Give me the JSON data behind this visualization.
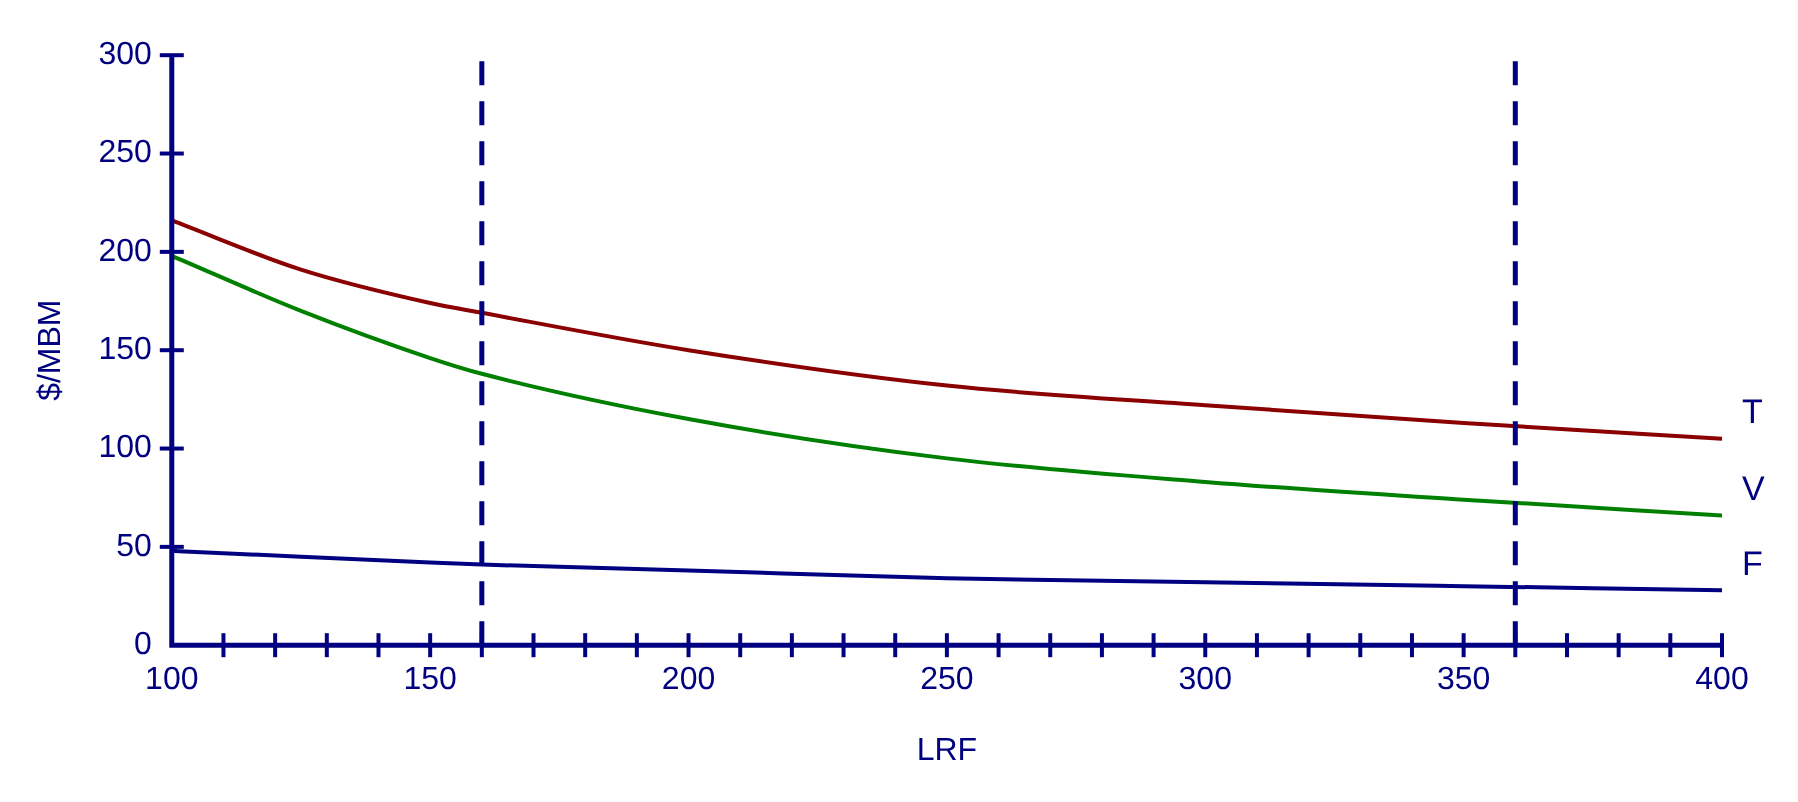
{
  "chart_data": {
    "type": "line",
    "xlabel": "LRF",
    "ylabel": "$/MBM",
    "xlim": [
      100,
      400
    ],
    "ylim": [
      0,
      300
    ],
    "xticks": [
      100,
      {
        "value": 110,
        "label": null
      },
      {
        "value": 120,
        "label": null
      },
      {
        "value": 130,
        "label": null
      },
      {
        "value": 140,
        "label": null
      },
      150,
      {
        "value": 160,
        "label": null
      },
      {
        "value": 170,
        "label": null
      },
      {
        "value": 180,
        "label": null
      },
      {
        "value": 190,
        "label": null
      },
      200,
      {
        "value": 210,
        "label": null
      },
      {
        "value": 220,
        "label": null
      },
      {
        "value": 230,
        "label": null
      },
      {
        "value": 240,
        "label": null
      },
      250,
      {
        "value": 260,
        "label": null
      },
      {
        "value": 270,
        "label": null
      },
      {
        "value": 280,
        "label": null
      },
      {
        "value": 290,
        "label": null
      },
      300,
      {
        "value": 310,
        "label": null
      },
      {
        "value": 320,
        "label": null
      },
      {
        "value": 330,
        "label": null
      },
      {
        "value": 340,
        "label": null
      },
      350,
      {
        "value": 360,
        "label": null
      },
      {
        "value": 370,
        "label": null
      },
      {
        "value": 380,
        "label": null
      },
      {
        "value": 390,
        "label": null
      },
      400
    ],
    "yticks": [
      0,
      50,
      100,
      150,
      200,
      250,
      300
    ],
    "x": [
      100,
      125,
      150,
      160,
      200,
      250,
      300,
      350,
      400
    ],
    "series": [
      {
        "name": "T",
        "color": "#8b0000",
        "values": [
          216,
          191,
          174,
          169,
          150,
          132,
          122,
          113,
          105
        ]
      },
      {
        "name": "V",
        "color": "#008000",
        "values": [
          198,
          170,
          146,
          138,
          115,
          95,
          83,
          74,
          66
        ]
      },
      {
        "name": "F",
        "color": "#000080",
        "values": [
          48,
          45,
          42,
          41,
          38,
          34,
          32,
          30,
          28
        ]
      }
    ],
    "ref_lines": [
      {
        "axis": "x",
        "value": 160,
        "color": "#000080",
        "line_style": "dashed"
      },
      {
        "axis": "x",
        "value": 360,
        "color": "#000080",
        "line_style": "dashed"
      }
    ],
    "grid": false,
    "legend": false,
    "marker": "none",
    "line_style": "solid"
  }
}
